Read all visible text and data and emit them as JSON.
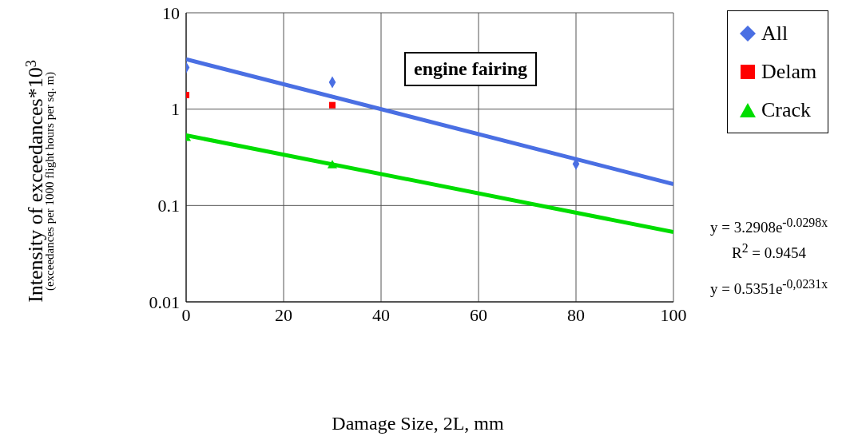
{
  "chart_data": {
    "type": "scatter",
    "title": "engine fairing",
    "xlabel": "Damage Size, 2L, mm",
    "ylabel": "Intensity of exceedances*10$^{3}$\n(exceedances per 1000 flight hours per sq. m)",
    "xlim": [
      0,
      100
    ],
    "xticks": [
      0,
      20,
      40,
      60,
      80,
      100
    ],
    "ylim": [
      0.01,
      10
    ],
    "yticks": [
      0.01,
      0.1,
      1,
      10
    ],
    "log": true,
    "grid": true,
    "legend": "top right",
    "series": [
      {
        "name": "All",
        "color": "#4a6fe3",
        "marker": "diamond",
        "x": [
          0,
          30,
          80
        ],
        "values": [
          2.7,
          1.9,
          0.27
        ]
      },
      {
        "name": "Delam",
        "color": "#ff0000",
        "marker": "square",
        "x": [
          0,
          30
        ],
        "values": [
          1.4,
          1.1
        ]
      },
      {
        "name": "Crack",
        "color": "#00dd00",
        "marker": "triangle",
        "x": [
          0,
          30
        ],
        "values": [
          0.5,
          0.26
        ]
      },
      {
        "type": "line",
        "color": "#4a6fe3",
        "marker": "none",
        "x": [
          0,
          100
        ],
        "values": [
          3.29,
          0.167
        ]
      },
      {
        "type": "line",
        "color": "#00dd00",
        "marker": "none",
        "x": [
          0,
          100
        ],
        "values": [
          0.535,
          0.053
        ]
      }
    ],
    "annotations": [
      "y = 3.2908e$^{-0.0298x}$",
      "R$^{2}$ = 0.9454",
      "y = 0.5351e$^{-0,0231x}$"
    ]
  }
}
